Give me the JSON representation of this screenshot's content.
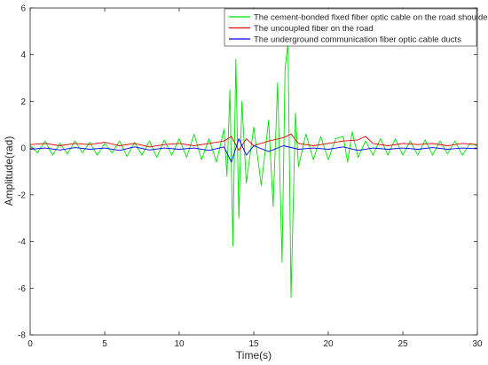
{
  "chart_data": {
    "type": "line",
    "title": "",
    "xlabel": "Time(s)",
    "ylabel": "Amplitude(rad)",
    "xlim": [
      0,
      30
    ],
    "ylim": [
      -8,
      6
    ],
    "xticks": [
      0,
      5,
      10,
      15,
      20,
      25,
      30
    ],
    "yticks": [
      -8,
      -6,
      -4,
      -2,
      0,
      2,
      4,
      6
    ],
    "grid": false,
    "legend_position": "top-right",
    "series": [
      {
        "name": "The cement-bonded fixed fiber optic cable on the road shoulder",
        "color": "#00e000",
        "x": [
          0,
          0.5,
          1,
          1.5,
          2,
          2.5,
          3,
          3.5,
          4,
          4.5,
          5,
          5.5,
          6,
          6.5,
          7,
          7.5,
          8,
          8.5,
          9,
          9.5,
          10,
          10.5,
          11,
          11.5,
          12,
          12.5,
          13,
          13.2,
          13.4,
          13.6,
          13.8,
          14,
          14.2,
          14.5,
          15,
          15.5,
          16,
          16.3,
          16.6,
          16.9,
          17.1,
          17.3,
          17.5,
          17.8,
          18,
          18.5,
          19,
          19.5,
          20,
          20.5,
          21,
          21.3,
          21.6,
          22,
          22.5,
          23,
          23.5,
          24,
          24.5,
          25,
          25.5,
          26,
          26.5,
          27,
          27.5,
          28,
          28.5,
          29,
          29.5,
          30
        ],
        "values": [
          0.1,
          -0.2,
          0.3,
          -0.3,
          0.2,
          -0.25,
          0.3,
          -0.2,
          0.25,
          -0.3,
          0.2,
          -0.2,
          0.3,
          -0.35,
          0.25,
          -0.3,
          0.3,
          -0.4,
          0.35,
          -0.3,
          0.4,
          -0.4,
          0.6,
          -0.5,
          0.4,
          -0.6,
          0.8,
          -1.2,
          2.5,
          -4.2,
          3.8,
          -3.0,
          2.0,
          -1.5,
          0.9,
          -1.6,
          1.2,
          -2.5,
          2.8,
          -4.9,
          3.4,
          4.5,
          -6.4,
          1.5,
          -0.8,
          0.6,
          -0.5,
          0.5,
          -0.5,
          0.4,
          0.5,
          -0.6,
          0.7,
          -0.4,
          0.3,
          -0.3,
          0.4,
          -0.3,
          0.4,
          -0.3,
          0.3,
          -0.3,
          0.35,
          -0.3,
          0.3,
          -0.25,
          0.3,
          -0.3,
          0.2,
          0.1
        ]
      },
      {
        "name": "The uncoupled fiber on the road",
        "color": "#e00000",
        "x": [
          0,
          1,
          2,
          3,
          4,
          5,
          6,
          7,
          8,
          9,
          10,
          11,
          12,
          13,
          13.5,
          14,
          14.5,
          15,
          16,
          17,
          17.5,
          18,
          19,
          20,
          21,
          22,
          22.5,
          23,
          24,
          25,
          26,
          27,
          28,
          29,
          30
        ],
        "values": [
          0.15,
          0.2,
          0.1,
          0.2,
          0.15,
          0.25,
          0.1,
          0.2,
          0.05,
          0.15,
          0.2,
          0.1,
          0.2,
          0.3,
          0.5,
          -0.1,
          0.4,
          0.1,
          0.3,
          0.45,
          0.6,
          0.2,
          0.1,
          0.2,
          0.3,
          0.35,
          0.5,
          0.2,
          0.1,
          0.2,
          0.15,
          0.2,
          0.1,
          0.2,
          0.15
        ]
      },
      {
        "name": "The underground communication fiber optic cable ducts",
        "color": "#0000ff",
        "x": [
          0,
          1,
          2,
          3,
          4,
          5,
          6,
          7,
          8,
          9,
          10,
          11,
          12,
          13,
          13.5,
          14,
          14.5,
          15,
          16,
          17,
          18,
          19,
          20,
          21,
          22,
          23,
          24,
          25,
          26,
          27,
          28,
          29,
          30
        ],
        "values": [
          -0.05,
          0.0,
          -0.08,
          0.02,
          -0.05,
          0.0,
          -0.1,
          0.05,
          -0.08,
          0.0,
          -0.05,
          0.0,
          -0.1,
          0.05,
          -0.6,
          0.4,
          -0.3,
          0.1,
          -0.15,
          0.1,
          -0.05,
          0.0,
          -0.05,
          0.05,
          -0.1,
          0.0,
          -0.05,
          0.0,
          -0.05,
          0.02,
          -0.05,
          0.0,
          -0.03
        ]
      }
    ]
  }
}
